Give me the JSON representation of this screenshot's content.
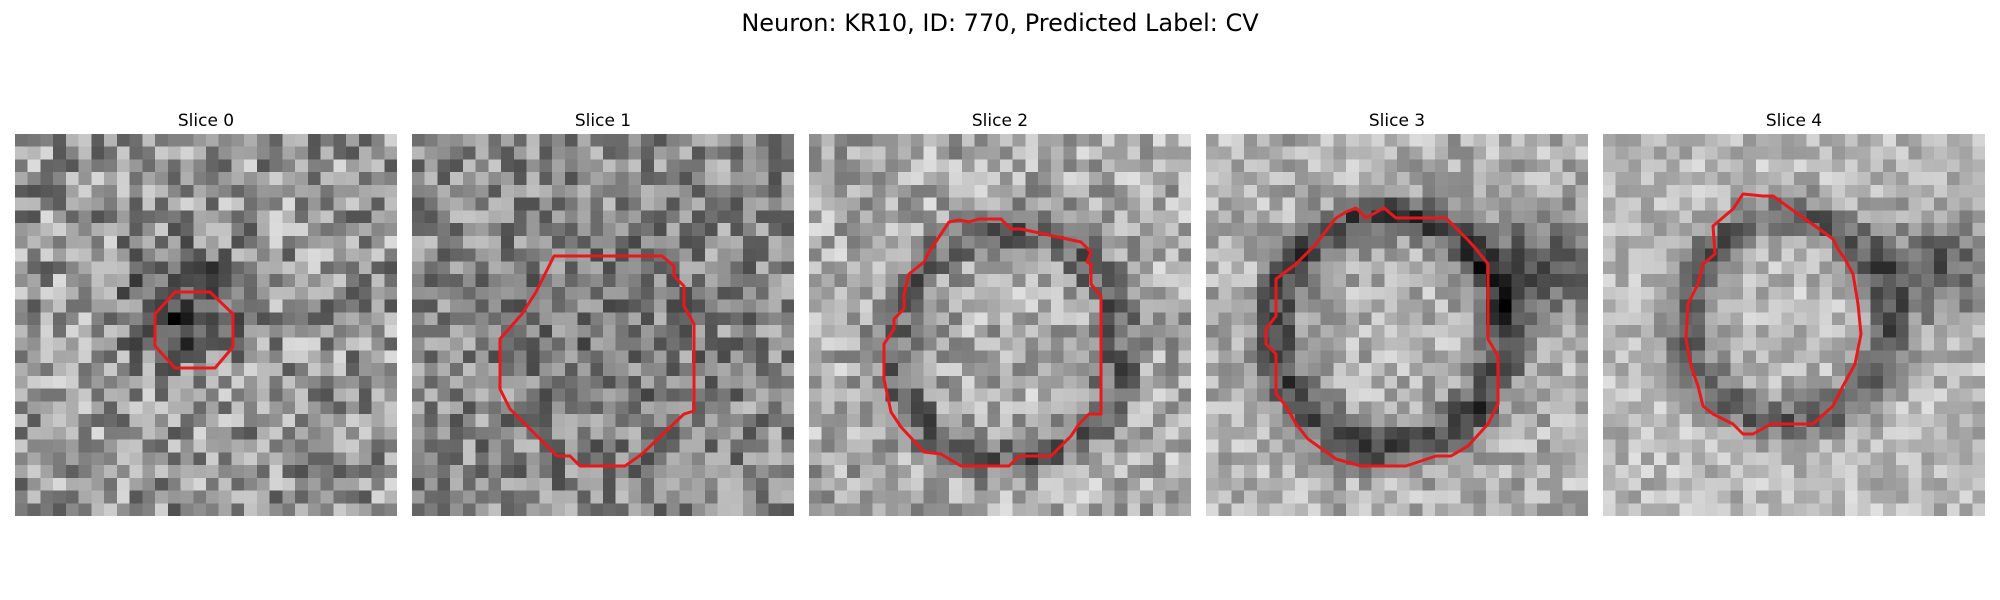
{
  "figure": {
    "suptitle": "Neuron: KR10, ID: 770, Predicted Label: CV",
    "contour_color": "#e8191c",
    "colormap": "gray"
  },
  "panels": [
    {
      "title": "Slice 0",
      "contour_size": "small",
      "membrane": "dark blob"
    },
    {
      "title": "Slice 1",
      "contour_size": "large",
      "membrane": "faint"
    },
    {
      "title": "Slice 2",
      "contour_size": "large",
      "membrane": "dark ring"
    },
    {
      "title": "Slice 3",
      "contour_size": "large",
      "membrane": "dark ring"
    },
    {
      "title": "Slice 4",
      "contour_size": "large",
      "membrane": "dark ring"
    }
  ]
}
